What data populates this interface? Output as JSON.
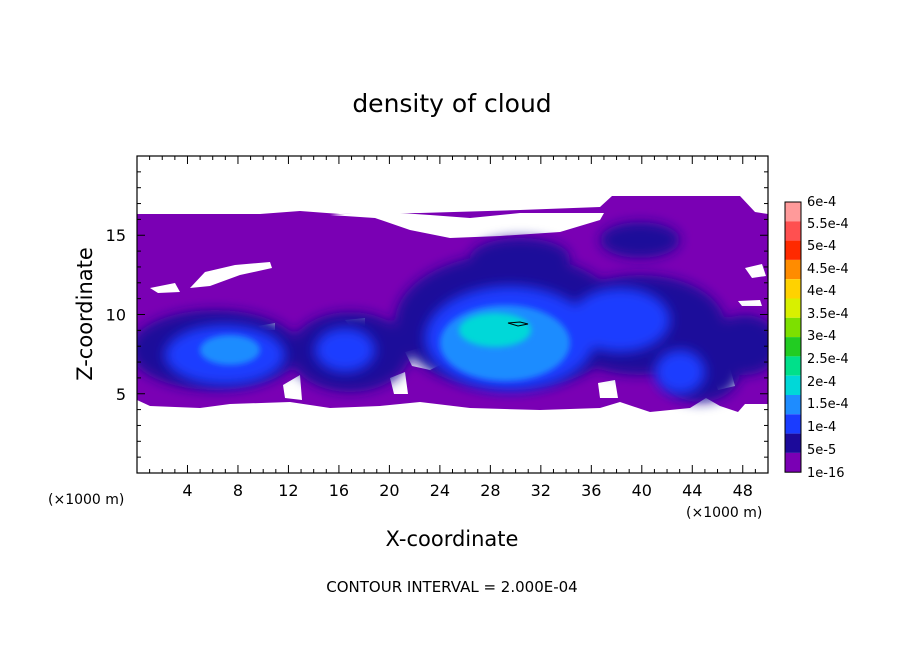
{
  "chart_data": {
    "type": "heatmap",
    "title": "density of cloud",
    "xlabel": "X-coordinate",
    "ylabel": "Z-coordinate",
    "x_unit": "(×1000 m)",
    "z_unit": "(×1000 m)",
    "xlim": [
      0,
      50
    ],
    "ylim": [
      0,
      20
    ],
    "x_ticks": [
      "4",
      "8",
      "12",
      "16",
      "20",
      "24",
      "28",
      "32",
      "36",
      "40",
      "44",
      "48"
    ],
    "y_ticks": [
      "5",
      "10",
      "15"
    ],
    "footer": "CONTOUR INTERVAL = 2.000E-04",
    "colorbar": {
      "levels": [
        "6e-4",
        "5.5e-4",
        "5e-4",
        "4.5e-4",
        "4e-4",
        "3.5e-4",
        "3e-4",
        "2.5e-4",
        "2e-4",
        "1.5e-4",
        "1e-4",
        "5e-5",
        "1e-16"
      ],
      "colors": [
        "#ff9a9a",
        "#ff5050",
        "#ff2a00",
        "#ff8c00",
        "#ffd200",
        "#d8f000",
        "#7de000",
        "#22cc22",
        "#00e08a",
        "#00d8d8",
        "#1e8cff",
        "#1a3cff",
        "#1c0a9a",
        "#7a00b4"
      ]
    },
    "cloud_extent": {
      "x": [
        0,
        50
      ],
      "z": [
        4.2,
        17.5
      ]
    },
    "cores": [
      {
        "x": 28,
        "z": 8,
        "value": 0.0002
      },
      {
        "x": 7,
        "z": 7.5,
        "value": 0.00012
      },
      {
        "x": 44,
        "z": 7,
        "value": 0.0001
      },
      {
        "x": 37,
        "z": 9.5,
        "value": 8e-05
      }
    ]
  }
}
